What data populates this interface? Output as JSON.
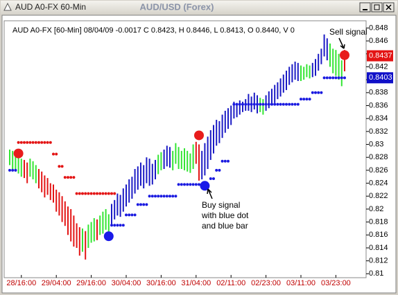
{
  "window_title": "AUD A0-FX 60-Min",
  "chart_data": {
    "type": "ohlc",
    "title": "AUD/USD (Forex)",
    "info": "AUD A0-FX [60-Min] 08/04/09  -0.0017 C 0.8423, H 0.8446, L 0.8413, O 0.8440, V 0",
    "categories": [
      null,
      null,
      null,
      null,
      "28/16:00",
      null,
      null,
      null,
      null,
      null,
      null,
      null,
      null,
      null,
      null,
      null,
      "29/04:00",
      null,
      null,
      null,
      null,
      null,
      null,
      null,
      null,
      null,
      null,
      null,
      "29/16:00",
      null,
      null,
      null,
      null,
      null,
      null,
      null,
      null,
      null,
      null,
      null,
      "30/04:00",
      null,
      null,
      null,
      null,
      null,
      null,
      null,
      null,
      null,
      null,
      null,
      "30/16:00",
      null,
      null,
      null,
      null,
      null,
      null,
      null,
      null,
      null,
      null,
      null,
      "31/04:00",
      null,
      null,
      null,
      null,
      null,
      null,
      null,
      null,
      null,
      null,
      null,
      "02/11:00",
      null,
      null,
      null,
      null,
      null,
      null,
      null,
      null,
      null,
      null,
      null,
      "02/23:00",
      null,
      null,
      null,
      null,
      null,
      null,
      null,
      null,
      null,
      null,
      null,
      "03/11:00",
      null,
      null,
      null,
      null,
      null,
      null,
      null,
      null,
      null,
      null,
      null,
      "03/23:00",
      null,
      null,
      null
    ],
    "high": [
      0.8292,
      0.829,
      0.8286,
      0.8282,
      0.8278,
      0.8276,
      0.8272,
      0.8278,
      0.8274,
      0.8268,
      0.8262,
      0.8258,
      0.8252,
      0.8248,
      0.824,
      0.8238,
      0.823,
      0.8226,
      0.822,
      0.8212,
      0.8204,
      0.82,
      0.819,
      0.8178,
      0.8172,
      0.817,
      0.8166,
      0.8176,
      0.818,
      0.8186,
      0.8184,
      0.819,
      0.8196,
      0.82,
      0.8192,
      0.8208,
      0.8214,
      0.8224,
      0.8222,
      0.8232,
      0.8238,
      0.8246,
      0.825,
      0.8262,
      0.8266,
      0.8272,
      0.8268,
      0.828,
      0.8278,
      0.827,
      0.8276,
      0.8284,
      0.8288,
      0.8292,
      0.8298,
      0.8296,
      0.829,
      0.8302,
      0.8296,
      0.829,
      0.8294,
      0.829,
      0.8286,
      0.83,
      0.8304,
      0.83,
      0.829,
      0.8302,
      0.8312,
      0.8322,
      0.833,
      0.8338,
      0.8336,
      0.8346,
      0.8352,
      0.8356,
      0.836,
      0.8366,
      0.8364,
      0.8368,
      0.8366,
      0.837,
      0.8378,
      0.8374,
      0.838,
      0.8376,
      0.8372,
      0.837,
      0.8376,
      0.8382,
      0.8386,
      0.8392,
      0.8396,
      0.8402,
      0.8408,
      0.8414,
      0.842,
      0.8424,
      0.8428,
      0.8426,
      0.8422,
      0.842,
      0.8424,
      0.8422,
      0.8426,
      0.8432,
      0.844,
      0.8448,
      0.847,
      0.8464,
      0.8456,
      0.8448,
      0.8446,
      0.844,
      0.843,
      0.8446
    ],
    "low": [
      0.8268,
      0.8262,
      0.8258,
      0.8255,
      0.825,
      0.8248,
      0.824,
      0.825,
      0.8246,
      0.824,
      0.8232,
      0.8226,
      0.8218,
      0.8222,
      0.8214,
      0.821,
      0.8196,
      0.819,
      0.818,
      0.8174,
      0.816,
      0.815,
      0.8142,
      0.814,
      0.8128,
      0.8134,
      0.8122,
      0.814,
      0.8148,
      0.815,
      0.8152,
      0.816,
      0.8162,
      0.8168,
      0.8164,
      0.8176,
      0.8184,
      0.819,
      0.8188,
      0.8196,
      0.8204,
      0.821,
      0.8216,
      0.8224,
      0.823,
      0.8236,
      0.8232,
      0.824,
      0.8236,
      0.8238,
      0.8246,
      0.8254,
      0.826,
      0.8262,
      0.8266,
      0.8264,
      0.826,
      0.827,
      0.8262,
      0.8262,
      0.826,
      0.8258,
      0.8256,
      0.8262,
      0.827,
      0.8244,
      0.8246,
      0.8252,
      0.8262,
      0.8276,
      0.8286,
      0.8298,
      0.8302,
      0.831,
      0.8318,
      0.8324,
      0.833,
      0.834,
      0.8342,
      0.8346,
      0.835,
      0.8352,
      0.8352,
      0.835,
      0.8354,
      0.8348,
      0.835,
      0.8346,
      0.8352,
      0.8356,
      0.836,
      0.8364,
      0.837,
      0.8374,
      0.838,
      0.8384,
      0.8392,
      0.8396,
      0.84,
      0.8398,
      0.8398,
      0.84,
      0.8404,
      0.8402,
      0.8404,
      0.8406,
      0.8414,
      0.8424,
      0.8436,
      0.843,
      0.842,
      0.841,
      0.8406,
      0.84,
      0.839,
      0.8413
    ],
    "bar_colors": [
      "g",
      "g",
      "g",
      "g",
      "g",
      "r",
      "r",
      "g",
      "g",
      "g",
      "r",
      "r",
      "r",
      "r",
      "r",
      "r",
      "r",
      "r",
      "r",
      "r",
      "r",
      "r",
      "r",
      "r",
      "r",
      "g",
      "r",
      "g",
      "g",
      "g",
      "r",
      "g",
      "g",
      "g",
      "g",
      "b",
      "b",
      "b",
      "b",
      "b",
      "b",
      "b",
      "b",
      "b",
      "b",
      "b",
      "b",
      "b",
      "b",
      "b",
      "b",
      "g",
      "g",
      "b",
      "b",
      "b",
      "g",
      "g",
      "g",
      "g",
      "g",
      "g",
      "g",
      "g",
      "r",
      "r",
      "b",
      "b",
      "b",
      "b",
      "b",
      "b",
      "b",
      "b",
      "b",
      "b",
      "b",
      "b",
      "b",
      "b",
      "b",
      "b",
      "b",
      "b",
      "b",
      "b",
      "g",
      "g",
      "b",
      "b",
      "b",
      "b",
      "b",
      "b",
      "b",
      "b",
      "b",
      "b",
      "b",
      "b",
      "g",
      "g",
      "g",
      "g",
      "b",
      "b",
      "b",
      "b",
      "b",
      "b",
      "g",
      "g",
      "g",
      "g",
      "g",
      "r"
    ],
    "palette": {
      "g": "#33e533",
      "r": "#e31414",
      "b": "#1a1ac4"
    },
    "stops": [
      {
        "color": "#e31414",
        "values": [
          null,
          null,
          null,
          0.8303,
          0.8303,
          0.8303,
          0.8303,
          0.8303,
          0.8303,
          0.8303,
          0.8303,
          0.8303,
          0.8303,
          0.8303,
          0.8303,
          0.8285,
          0.8285,
          0.8266,
          0.8266,
          0.8249,
          0.8249,
          0.8249,
          0.8249,
          0.8224,
          0.8224,
          0.8224,
          0.8224,
          0.8224,
          0.8224,
          0.8224,
          0.8224,
          0.8224,
          0.8224,
          0.8224,
          0.8224,
          0.8224,
          0.8224,
          null,
          null,
          null,
          null,
          null,
          null,
          null,
          null,
          null,
          null,
          null,
          null,
          null,
          null,
          null,
          null,
          null,
          null,
          null,
          null,
          null,
          null,
          null,
          null,
          null,
          null,
          null,
          null,
          null,
          null,
          null,
          null,
          null,
          null,
          null,
          null,
          null,
          null,
          null,
          null,
          null,
          null,
          null,
          null,
          null,
          null,
          null,
          null,
          null,
          null,
          null,
          null,
          null,
          null,
          null,
          null,
          null,
          null,
          null,
          null,
          null,
          null,
          null,
          null,
          null,
          null,
          null,
          null,
          null,
          null,
          null,
          null,
          null,
          null,
          null,
          null,
          null,
          null,
          null
        ]
      },
      {
        "color": "#1a1ae0",
        "values": [
          0.826,
          0.826,
          0.826,
          null,
          null,
          null,
          null,
          null,
          null,
          null,
          null,
          null,
          null,
          null,
          null,
          null,
          null,
          null,
          null,
          null,
          null,
          null,
          null,
          null,
          null,
          null,
          null,
          null,
          null,
          null,
          null,
          null,
          null,
          null,
          null,
          0.8175,
          0.8175,
          0.8175,
          0.8175,
          0.8175,
          0.8191,
          0.8191,
          0.8191,
          0.8191,
          0.8207,
          0.8207,
          0.8207,
          0.8207,
          0.822,
          0.822,
          0.822,
          0.822,
          0.822,
          0.822,
          0.822,
          0.822,
          0.822,
          0.822,
          0.8238,
          0.8238,
          0.8238,
          0.8238,
          0.8238,
          0.8238,
          0.8238,
          0.8238,
          0.8238,
          0.8238,
          null,
          0.8247,
          0.8247,
          0.826,
          0.826,
          0.8274,
          0.8274,
          0.8274,
          null,
          0.8362,
          0.8362,
          0.8362,
          0.8362,
          0.8362,
          0.8362,
          0.8362,
          0.8362,
          0.8362,
          0.8362,
          0.8362,
          0.8362,
          0.8362,
          0.8362,
          0.8362,
          0.8362,
          0.8362,
          0.8362,
          0.8362,
          0.8362,
          0.8362,
          0.8362,
          0.8362,
          0.837,
          0.837,
          0.837,
          0.837,
          0.838,
          0.838,
          0.838,
          0.838,
          0.8403,
          0.8403,
          0.8403,
          0.8403,
          0.8403,
          0.8403,
          0.8403,
          0.8403
        ]
      }
    ],
    "signals": [
      {
        "color": "#e81c1c",
        "values": [
          null,
          null,
          null,
          0.8286,
          null,
          null,
          null,
          null,
          null,
          null,
          null,
          null,
          null,
          null,
          null,
          null,
          null,
          null,
          null,
          null,
          null,
          null,
          null,
          null,
          null,
          null,
          null,
          null,
          null,
          null,
          null,
          null,
          null,
          null,
          null,
          null,
          null,
          null,
          null,
          null,
          null,
          null,
          null,
          null,
          null,
          null,
          null,
          null,
          null,
          null,
          null,
          null,
          null,
          null,
          null,
          null,
          null,
          null,
          null,
          null,
          null,
          null,
          null,
          null,
          null,
          0.8314,
          null,
          null,
          null,
          null,
          null,
          null,
          null,
          null,
          null,
          null,
          null,
          null,
          null,
          null,
          null,
          null,
          null,
          null,
          null,
          null,
          null,
          null,
          null,
          null,
          null,
          null,
          null,
          null,
          null,
          null,
          null,
          null,
          null,
          null,
          null,
          null,
          null,
          null,
          null,
          null,
          null,
          null,
          null,
          null,
          null,
          null,
          null,
          null,
          null,
          0.8438
        ]
      },
      {
        "color": "#1a1ae8",
        "values": [
          null,
          null,
          null,
          null,
          null,
          null,
          null,
          null,
          null,
          null,
          null,
          null,
          null,
          null,
          null,
          null,
          null,
          null,
          null,
          null,
          null,
          null,
          null,
          null,
          null,
          null,
          null,
          null,
          null,
          null,
          null,
          null,
          null,
          null,
          0.8158,
          null,
          null,
          null,
          null,
          null,
          null,
          null,
          null,
          null,
          null,
          null,
          null,
          null,
          null,
          null,
          null,
          null,
          null,
          null,
          null,
          null,
          null,
          null,
          null,
          null,
          null,
          null,
          null,
          null,
          null,
          null,
          null,
          0.8236,
          null,
          null,
          null,
          null,
          null,
          null,
          null,
          null,
          null,
          null,
          null,
          null,
          null,
          null,
          null,
          null,
          null,
          null,
          null,
          null,
          null,
          null,
          null,
          null,
          null,
          null,
          null,
          null,
          null,
          null,
          null,
          null,
          null,
          null,
          null,
          null,
          null,
          null,
          null,
          null,
          null,
          null,
          null,
          null,
          null,
          null,
          null,
          null
        ]
      }
    ],
    "price_labels": [
      {
        "value": 0.8437,
        "color": "#e31414"
      },
      {
        "value": 0.8403,
        "color": "#1010c8"
      }
    ],
    "annotations": [
      "Sell signal",
      "Buy signal",
      "with blue dot",
      "and blue bar"
    ],
    "ylim": [
      0.8095,
      0.8489
    ],
    "yticks": [
      0.81,
      0.812,
      0.814,
      0.816,
      0.818,
      0.82,
      0.822,
      0.824,
      0.826,
      0.828,
      0.83,
      0.832,
      0.834,
      0.836,
      0.838,
      0.84,
      0.842,
      0.844,
      0.846,
      0.848
    ]
  }
}
